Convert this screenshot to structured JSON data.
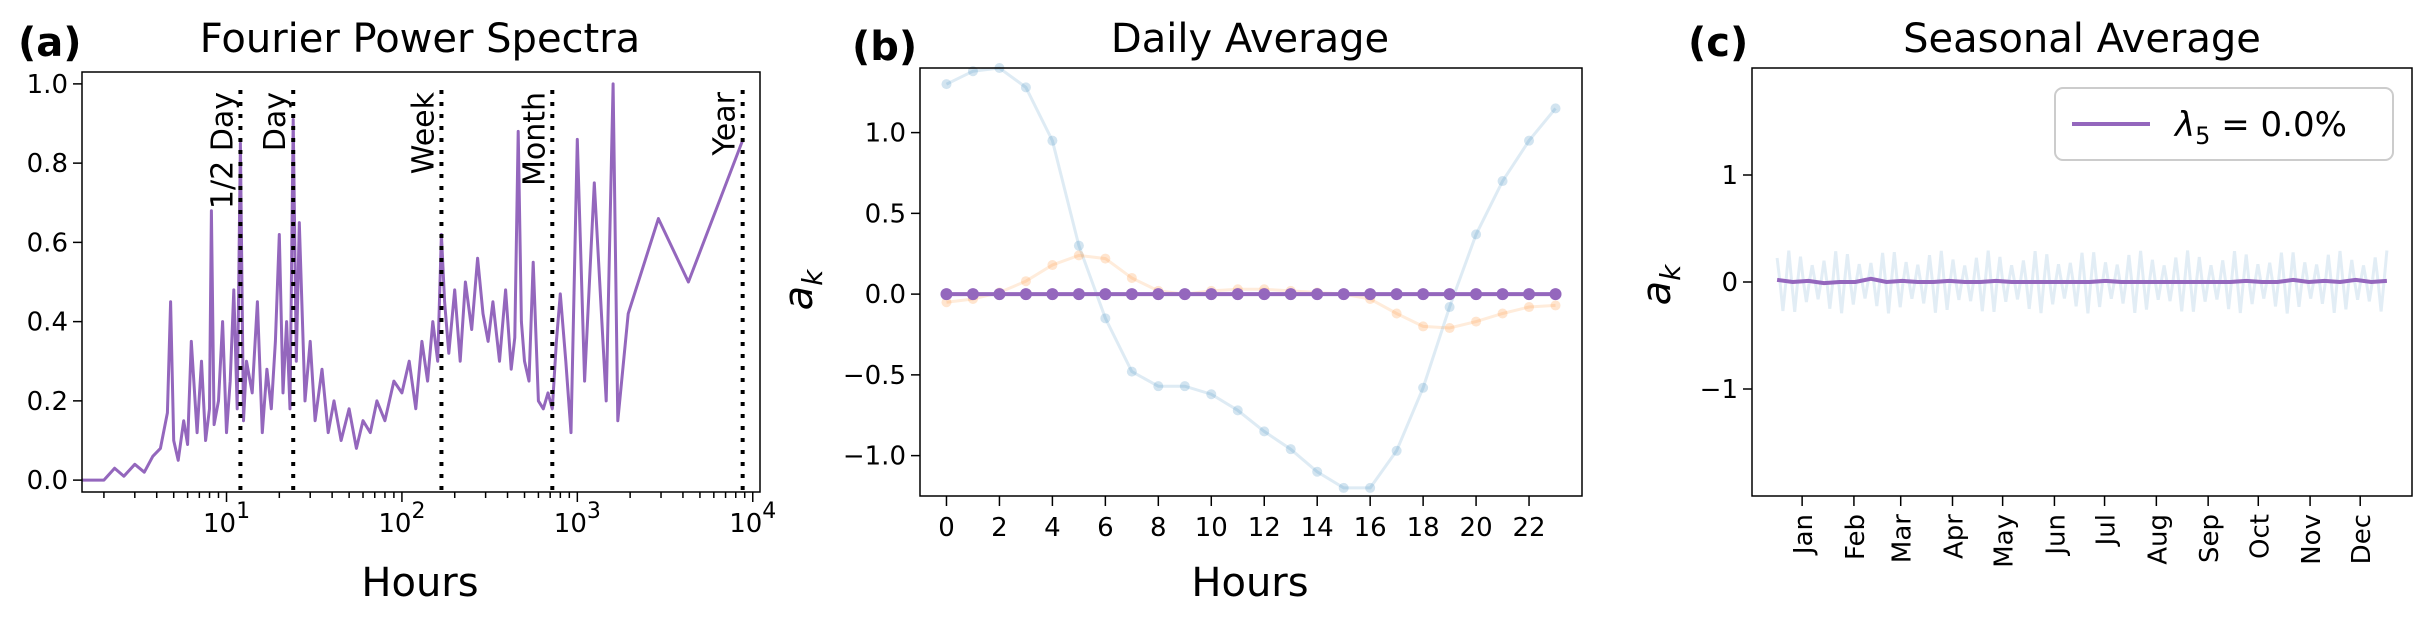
{
  "colors": {
    "purple": "#9467bd",
    "blue": "#1f77b4",
    "orange": "#ff7f0e",
    "text": "#000000"
  },
  "chart_data": [
    {
      "type": "line",
      "panel_label": "(a)",
      "title": "Fourier Power Spectra",
      "xlabel": "Hours",
      "ylabel": "",
      "xscale": "log",
      "xlim": [
        1.5,
        11000
      ],
      "ylim": [
        -0.03,
        1.03
      ],
      "x_ticks": [
        {
          "v": 10,
          "label": "10"
        },
        {
          "v": 100,
          "label": "10"
        },
        {
          "v": 1000,
          "label": "10"
        },
        {
          "v": 10000,
          "label": "10"
        }
      ],
      "x_tick_exponents": [
        "1",
        "2",
        "3",
        "4"
      ],
      "y_ticks": [
        0.0,
        0.2,
        0.4,
        0.6,
        0.8,
        1.0
      ],
      "y_tick_labels": [
        "0.0",
        "0.2",
        "0.4",
        "0.6",
        "0.8",
        "1.0"
      ],
      "reference_lines": [
        {
          "x": 12,
          "label": "1/2 Day"
        },
        {
          "x": 24,
          "label": "Day"
        },
        {
          "x": 168,
          "label": "Week"
        },
        {
          "x": 720,
          "label": "Month"
        },
        {
          "x": 8760,
          "label": "Year"
        }
      ],
      "series": [
        {
          "x": [
            1.5,
            2,
            2.3,
            2.6,
            3,
            3.4,
            3.8,
            4.2,
            4.6,
            4.8,
            5,
            5.3,
            5.7,
            6,
            6.3,
            6.8,
            7.2,
            7.6,
            8,
            8.2,
            8.5,
            9,
            9.5,
            10,
            10.5,
            11,
            11.5,
            12,
            12.5,
            13,
            14,
            15,
            16,
            17,
            18,
            19,
            20,
            21,
            22,
            23,
            24,
            25,
            26,
            28,
            30,
            32,
            35,
            38,
            41,
            45,
            50,
            55,
            60,
            66,
            72,
            80,
            90,
            100,
            110,
            120,
            130,
            140,
            150,
            160,
            168,
            175,
            185,
            200,
            215,
            230,
            250,
            270,
            290,
            310,
            330,
            360,
            390,
            420,
            440,
            460,
            480,
            500,
            530,
            560,
            600,
            640,
            680,
            720,
            760,
            800,
            860,
            920,
            1000,
            1100,
            1250,
            1460,
            1600,
            1700,
            1950,
            2900,
            4300,
            8800
          ],
          "y": [
            0.0,
            0.0,
            0.03,
            0.01,
            0.04,
            0.02,
            0.06,
            0.08,
            0.17,
            0.45,
            0.1,
            0.05,
            0.15,
            0.09,
            0.35,
            0.12,
            0.3,
            0.1,
            0.18,
            0.68,
            0.14,
            0.2,
            0.4,
            0.12,
            0.25,
            0.48,
            0.18,
            0.85,
            0.15,
            0.3,
            0.22,
            0.45,
            0.12,
            0.28,
            0.18,
            0.35,
            0.62,
            0.22,
            0.4,
            0.18,
            0.91,
            0.3,
            0.65,
            0.2,
            0.35,
            0.15,
            0.28,
            0.12,
            0.2,
            0.1,
            0.18,
            0.08,
            0.15,
            0.12,
            0.2,
            0.15,
            0.25,
            0.22,
            0.3,
            0.18,
            0.35,
            0.25,
            0.4,
            0.3,
            0.62,
            0.45,
            0.32,
            0.48,
            0.3,
            0.5,
            0.38,
            0.56,
            0.42,
            0.35,
            0.45,
            0.3,
            0.48,
            0.28,
            0.36,
            0.88,
            0.4,
            0.3,
            0.25,
            0.55,
            0.2,
            0.18,
            0.22,
            0.18,
            0.35,
            0.47,
            0.3,
            0.12,
            0.86,
            0.25,
            0.75,
            0.2,
            1.0,
            0.15,
            0.42,
            0.66,
            0.5,
            0.86
          ]
        }
      ]
    },
    {
      "type": "line",
      "panel_label": "(b)",
      "title": "Daily Average",
      "xlabel": "Hours",
      "ylabel": "a",
      "ylabel_sub": "k",
      "xlim": [
        -1,
        24
      ],
      "ylim": [
        -1.25,
        1.4
      ],
      "x_ticks": [
        0,
        2,
        4,
        6,
        8,
        10,
        12,
        14,
        16,
        18,
        20,
        22
      ],
      "y_ticks": [
        -1.0,
        -0.5,
        0.0,
        0.5,
        1.0
      ],
      "y_tick_labels": [
        "−1.0",
        "−0.5",
        "0.0",
        "0.5",
        "1.0"
      ],
      "x": [
        0,
        1,
        2,
        3,
        4,
        5,
        6,
        7,
        8,
        9,
        10,
        11,
        12,
        13,
        14,
        15,
        16,
        17,
        18,
        19,
        20,
        21,
        22,
        23
      ],
      "series": [
        {
          "color": "blue",
          "values": [
            1.3,
            1.38,
            1.4,
            1.28,
            0.95,
            0.3,
            -0.15,
            -0.48,
            -0.57,
            -0.57,
            -0.62,
            -0.72,
            -0.85,
            -0.96,
            -1.1,
            -1.2,
            -1.2,
            -0.97,
            -0.58,
            -0.08,
            0.37,
            0.7,
            0.95,
            1.15
          ]
        },
        {
          "color": "orange",
          "values": [
            -0.05,
            -0.03,
            0.01,
            0.08,
            0.18,
            0.24,
            0.22,
            0.1,
            0.02,
            0.0,
            0.02,
            0.03,
            0.03,
            0.02,
            0.01,
            0.0,
            -0.03,
            -0.12,
            -0.2,
            -0.21,
            -0.17,
            -0.12,
            -0.08,
            -0.07
          ]
        },
        {
          "color": "purple",
          "values": [
            0,
            0,
            0,
            0,
            0,
            0,
            0,
            0,
            0,
            0,
            0,
            0,
            0,
            0,
            0,
            0,
            0,
            0,
            0,
            0,
            0,
            0,
            0,
            0
          ]
        }
      ]
    },
    {
      "type": "line",
      "panel_label": "(c)",
      "title": "Seasonal Average",
      "xlabel": "",
      "ylabel": "a",
      "ylabel_sub": "k",
      "xlim": [
        -15,
        380
      ],
      "ylim": [
        -2.0,
        2.0
      ],
      "x_ticks": [
        15,
        46,
        74,
        105,
        135,
        166,
        196,
        227,
        258,
        288,
        319,
        349
      ],
      "x_tick_labels": [
        "Jan",
        "Feb",
        "Mar",
        "Apr",
        "May",
        "Jun",
        "Jul",
        "Aug",
        "Sep",
        "Oct",
        "Nov",
        "Dec"
      ],
      "y_ticks": [
        -1,
        0,
        1
      ],
      "y_tick_labels": [
        "−1",
        "0",
        "1"
      ],
      "series": [
        {
          "color": "purple",
          "name": "λ",
          "name_sub": "5",
          "name_suffix": " = 0.0%",
          "values": [
            0.02,
            0.0,
            0.01,
            -0.01,
            0.0,
            0.0,
            0.03,
            0.0,
            0.01,
            0.0,
            0.0,
            0.01,
            0.0,
            0.0,
            0.01,
            0.0,
            0.0,
            0.0,
            0.0,
            0.0,
            0.0,
            0.01,
            0.0,
            0.0,
            0.0,
            0.0,
            0.0,
            0.0,
            0.0,
            0.0,
            0.01,
            0.0,
            0.0,
            0.02,
            0.0,
            0.01,
            0.0,
            0.02,
            0.0,
            0.01
          ]
        }
      ],
      "background_series": {
        "color": "blue",
        "amplitude": 0.28,
        "cycles": 52
      },
      "legend": "top-right"
    }
  ]
}
